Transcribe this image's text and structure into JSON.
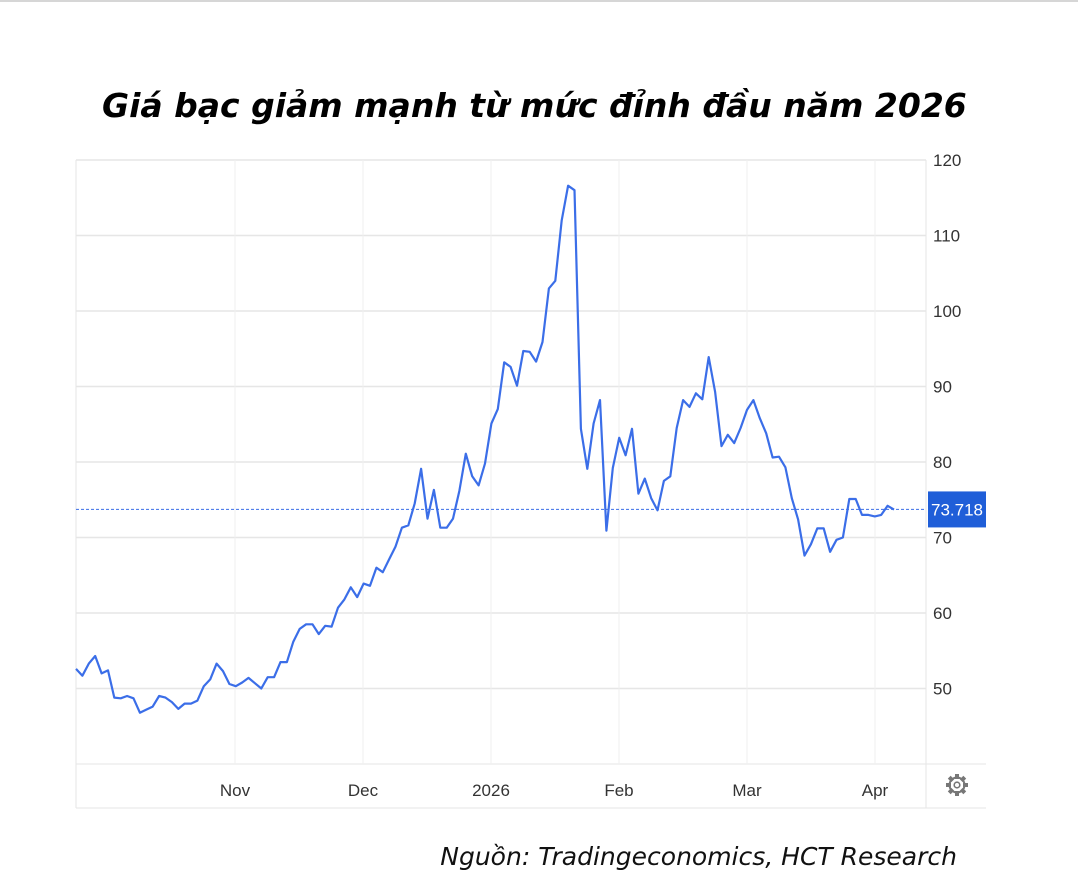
{
  "title": "Giá bạc giảm mạnh từ mức đỉnh đầu năm 2026",
  "source": "Nguồn: Tradingeconomics, HCT Research",
  "colors": {
    "line": "#3b6ee8",
    "label_bg": "#1f5ed8",
    "grid": "#e6e6e6"
  },
  "chart_data": {
    "type": "line",
    "title": "Giá bạc giảm mạnh từ mức đỉnh đầu năm 2026",
    "xlabel": "",
    "ylabel": "",
    "x_ticks": [
      "Nov",
      "Dec",
      "2026",
      "Feb",
      "Mar",
      "Apr"
    ],
    "y_ticks": [
      50,
      60,
      70,
      80,
      90,
      100,
      110,
      120
    ],
    "ylim": [
      40,
      120
    ],
    "grid": true,
    "last_value_label": "73.718",
    "last_value": 73.718,
    "settings_icon": "gear-icon",
    "series": [
      {
        "values": [
          52.6,
          51.7,
          53.3,
          54.3,
          52.0,
          52.4,
          48.8,
          48.7,
          49.0,
          48.7,
          46.8,
          47.2,
          47.6,
          49.0,
          48.8,
          48.2,
          47.3,
          48.0,
          48.0,
          48.4,
          50.3,
          51.2,
          53.3,
          52.3,
          50.6,
          50.3,
          50.8,
          51.4,
          50.7,
          50.0,
          51.5,
          51.5,
          53.5,
          53.5,
          56.2,
          57.9,
          58.5,
          58.5,
          57.2,
          58.3,
          58.2,
          60.7,
          61.8,
          63.4,
          62.1,
          63.9,
          63.6,
          66.0,
          65.4,
          67.1,
          68.8,
          71.3,
          71.6,
          74.5,
          79.1,
          72.5,
          76.3,
          71.3,
          71.3,
          72.5,
          76.2,
          81.1,
          78.1,
          76.9,
          79.8,
          85.1,
          87.0,
          93.2,
          92.6,
          90.1,
          94.7,
          94.6,
          93.3,
          95.9,
          103.0,
          104.0,
          112.0,
          116.6,
          116.0,
          84.4,
          79.1,
          85.1,
          88.2,
          70.9,
          79.2,
          83.2,
          80.9,
          84.4,
          75.8,
          77.8,
          75.2,
          73.6,
          77.5,
          78.1,
          84.5,
          88.2,
          87.3,
          89.1,
          88.3,
          93.9,
          89.3,
          82.1,
          83.6,
          82.5,
          84.5,
          86.9,
          88.2,
          85.8,
          83.8,
          80.6,
          80.7,
          79.3,
          75.2,
          72.4,
          67.6,
          69.1,
          71.2,
          71.2,
          68.1,
          69.7,
          70.0,
          75.1,
          75.1,
          73.0,
          73.0,
          72.8,
          73.0,
          74.2,
          73.7
        ]
      }
    ]
  }
}
